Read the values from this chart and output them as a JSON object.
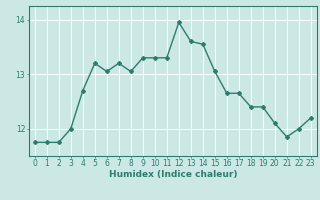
{
  "x": [
    0,
    1,
    2,
    3,
    4,
    5,
    6,
    7,
    8,
    9,
    10,
    11,
    12,
    13,
    14,
    15,
    16,
    17,
    18,
    19,
    20,
    21,
    22,
    23
  ],
  "y": [
    11.75,
    11.75,
    11.75,
    12.0,
    12.7,
    13.2,
    13.05,
    13.2,
    13.05,
    13.3,
    13.3,
    13.3,
    13.95,
    13.6,
    13.55,
    13.05,
    12.65,
    12.65,
    12.4,
    12.4,
    12.1,
    11.85,
    12.0,
    12.2
  ],
  "line_color": "#2d7d6e",
  "marker": "D",
  "markersize": 2.0,
  "linewidth": 1.0,
  "bg_color": "#cce8e4",
  "grid_color": "#ffffff",
  "axis_color": "#2d7d6e",
  "tick_color": "#2d7d6e",
  "label_color": "#2d7d6e",
  "xlabel": "Humidex (Indice chaleur)",
  "xlabel_fontsize": 6.5,
  "yticks": [
    12,
    13,
    14
  ],
  "ylim": [
    11.5,
    14.25
  ],
  "xlim": [
    -0.5,
    23.5
  ],
  "xtick_labels": [
    "0",
    "1",
    "2",
    "3",
    "4",
    "5",
    "6",
    "7",
    "8",
    "9",
    "10",
    "11",
    "12",
    "13",
    "14",
    "15",
    "16",
    "17",
    "18",
    "19",
    "20",
    "21",
    "22",
    "23"
  ],
  "tick_fontsize": 5.5
}
